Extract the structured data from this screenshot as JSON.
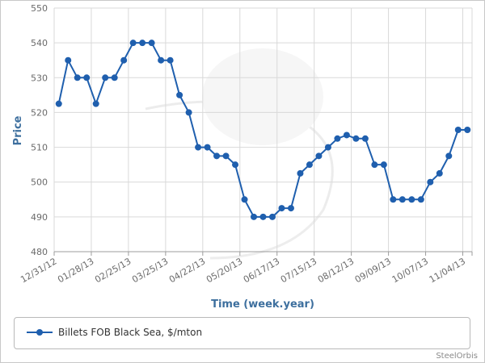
{
  "chart_data": {
    "type": "line",
    "xlabel": "Time (week.year)",
    "ylabel": "Price",
    "ylim": [
      480,
      550
    ],
    "yticks": [
      480,
      490,
      500,
      510,
      520,
      530,
      540,
      550
    ],
    "grid": true,
    "x_tick_labels": [
      "12/31/12",
      "01/28/13",
      "02/25/13",
      "03/25/13",
      "04/22/13",
      "05/20/13",
      "06/17/13",
      "07/15/13",
      "08/12/13",
      "09/09/13",
      "10/07/13",
      "11/04/13"
    ],
    "x_tick_every": 4,
    "series": [
      {
        "name": "Billets FOB Black Sea, $/mton",
        "color": "#1f5fae",
        "values": [
          522.5,
          535,
          530,
          530,
          522.5,
          530,
          530,
          535,
          540,
          540,
          540,
          535,
          535,
          525,
          520,
          510,
          510,
          507.5,
          507.5,
          505,
          495,
          490,
          490,
          490,
          492.5,
          492.5,
          502.5,
          505,
          507.5,
          510,
          512.5,
          513.5,
          512.5,
          512.5,
          505,
          505,
          495,
          495,
          495,
          495,
          500,
          502.5,
          507.5,
          515,
          515
        ]
      }
    ],
    "legend_position": "bottom"
  },
  "legend": {
    "label": "Billets FOB Black Sea, $/mton"
  },
  "credit": "SteelOrbis",
  "colors": {
    "series": "#1f5fae",
    "axis_title": "#3d6f9e",
    "grid": "#d9d9d9"
  }
}
